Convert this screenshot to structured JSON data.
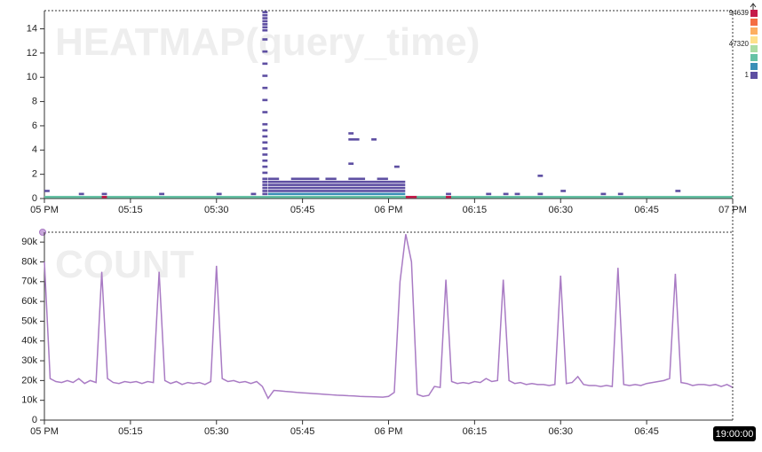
{
  "chart_data": [
    {
      "type": "heatmap",
      "title": "HEATMAP(query_time)",
      "xlim": [
        0,
        120
      ],
      "xticks": [
        {
          "value": 0,
          "label": "05 PM"
        },
        {
          "value": 15,
          "label": "05:15"
        },
        {
          "value": 30,
          "label": "05:30"
        },
        {
          "value": 45,
          "label": "05:45"
        },
        {
          "value": 60,
          "label": "06 PM"
        },
        {
          "value": 75,
          "label": "06:15"
        },
        {
          "value": 90,
          "label": "06:30"
        },
        {
          "value": 105,
          "label": "06:45"
        },
        {
          "value": 120,
          "label": "07 PM"
        }
      ],
      "ylim": [
        0,
        15.5
      ],
      "yticks": [
        0,
        2,
        4,
        6,
        8,
        10,
        12,
        14
      ],
      "bucket_size": 0.25,
      "palette": [
        "#c51b4a",
        "#f46d43",
        "#fdae61",
        "#fee08b",
        "#abdda4",
        "#66c2a5",
        "#3a8fb7",
        "#5e4fa2"
      ],
      "legend": [
        94639,
        47320,
        1
      ],
      "cells": [
        [
          0,
          120,
          0,
          5
        ],
        [
          39,
          63,
          0.25,
          6
        ],
        [
          39,
          63,
          0.5,
          7
        ],
        [
          39,
          63,
          0.75,
          7
        ],
        [
          39,
          63,
          1.0,
          7
        ],
        [
          39,
          63,
          1.25,
          7
        ],
        [
          39,
          41,
          1.5,
          7
        ],
        [
          43,
          48,
          1.5,
          7
        ],
        [
          49,
          51,
          1.5,
          7
        ],
        [
          53,
          56,
          1.5,
          7
        ],
        [
          58,
          60,
          1.5,
          7
        ],
        [
          53,
          54,
          2.75,
          7
        ],
        [
          61,
          62,
          2.5,
          7
        ],
        [
          53,
          54,
          5.25,
          7
        ],
        [
          53,
          55,
          4.75,
          7
        ],
        [
          57,
          58,
          4.75,
          7
        ],
        [
          38,
          39,
          0.25,
          7
        ],
        [
          38,
          39,
          0.5,
          7
        ],
        [
          38,
          39,
          0.75,
          7
        ],
        [
          38,
          39,
          1.0,
          7
        ],
        [
          38,
          39,
          1.25,
          7
        ],
        [
          38,
          39,
          1.5,
          7
        ],
        [
          38,
          39,
          2,
          7
        ],
        [
          38,
          39,
          2.5,
          7
        ],
        [
          38,
          39,
          3,
          7
        ],
        [
          38,
          39,
          3.5,
          7
        ],
        [
          38,
          39,
          4,
          7
        ],
        [
          38,
          39,
          4.5,
          7
        ],
        [
          38,
          39,
          5,
          7
        ],
        [
          38,
          39,
          5.5,
          7
        ],
        [
          38,
          39,
          6,
          7
        ],
        [
          38,
          39,
          7,
          7
        ],
        [
          38,
          39,
          8,
          7
        ],
        [
          38,
          39,
          9,
          7
        ],
        [
          38,
          39,
          10,
          7
        ],
        [
          38,
          39,
          11,
          7
        ],
        [
          38,
          39,
          12,
          7
        ],
        [
          38,
          39,
          13,
          7
        ],
        [
          38,
          39,
          13.75,
          7
        ],
        [
          38,
          39,
          14,
          7
        ],
        [
          38,
          39,
          14.25,
          7
        ],
        [
          38,
          39,
          14.5,
          7
        ],
        [
          38,
          39,
          14.75,
          7
        ],
        [
          38,
          39,
          15,
          7
        ],
        [
          38,
          39,
          15.25,
          7
        ],
        [
          0,
          1,
          0.5,
          7
        ],
        [
          6,
          7,
          0.25,
          7
        ],
        [
          10,
          11,
          0.25,
          7
        ],
        [
          10,
          11,
          0,
          0
        ],
        [
          20,
          21,
          0.25,
          7
        ],
        [
          30,
          31,
          0.25,
          7
        ],
        [
          36,
          37,
          0.25,
          7
        ],
        [
          70,
          71,
          0.25,
          7
        ],
        [
          70,
          71,
          0,
          0
        ],
        [
          77,
          78,
          0.25,
          7
        ],
        [
          80,
          81,
          0.25,
          7
        ],
        [
          82,
          83,
          0.25,
          7
        ],
        [
          86,
          87,
          0.25,
          7
        ],
        [
          86,
          87,
          1.75,
          7
        ],
        [
          90,
          91,
          0.5,
          7
        ],
        [
          97,
          98,
          0.25,
          7
        ],
        [
          100,
          101,
          0.25,
          7
        ],
        [
          110,
          111,
          0.5,
          7
        ],
        [
          63,
          65,
          0,
          0
        ]
      ]
    },
    {
      "type": "line",
      "title": "COUNT",
      "color": "#a97bc4",
      "xlim": [
        0,
        120
      ],
      "xticks": [
        {
          "value": 0,
          "label": "05 PM"
        },
        {
          "value": 15,
          "label": "05:15"
        },
        {
          "value": 30,
          "label": "05:30"
        },
        {
          "value": 45,
          "label": "05:45"
        },
        {
          "value": 60,
          "label": "06 PM"
        },
        {
          "value": 75,
          "label": "06:15"
        },
        {
          "value": 90,
          "label": "06:30"
        },
        {
          "value": 105,
          "label": "06:45"
        }
      ],
      "ylim": [
        0,
        95000
      ],
      "yticks": [
        0,
        {
          "value": 10000,
          "label": "10k"
        },
        {
          "value": 20000,
          "label": "20k"
        },
        {
          "value": 30000,
          "label": "30k"
        },
        {
          "value": 40000,
          "label": "40k"
        },
        {
          "value": 50000,
          "label": "50k"
        },
        {
          "value": 60000,
          "label": "60k"
        },
        {
          "value": 70000,
          "label": "70k"
        },
        {
          "value": 80000,
          "label": "80k"
        },
        {
          "value": 90000,
          "label": "90k"
        }
      ],
      "cursor": {
        "x": 120,
        "label": "19:00:00"
      },
      "values": [
        80000,
        21000,
        19500,
        19000,
        20000,
        19000,
        21000,
        18500,
        20000,
        19000,
        75000,
        21000,
        19000,
        18500,
        19500,
        19000,
        19500,
        18500,
        19500,
        19000,
        75000,
        20000,
        18500,
        19500,
        18000,
        19000,
        18500,
        19000,
        18000,
        19500,
        78000,
        21000,
        19500,
        20000,
        19000,
        19500,
        18500,
        19500,
        17000,
        11000,
        15000,
        14800,
        14500,
        14300,
        14000,
        13800,
        13600,
        13400,
        13200,
        13000,
        12800,
        12600,
        12500,
        12300,
        12200,
        12000,
        11900,
        11800,
        11700,
        11600,
        12000,
        14000,
        70000,
        94000,
        80000,
        13000,
        12000,
        12500,
        17000,
        16500,
        71000,
        19500,
        18500,
        19000,
        18500,
        19500,
        19000,
        21000,
        19500,
        20000,
        71000,
        20000,
        18500,
        19000,
        18000,
        18500,
        18000,
        18000,
        17500,
        18000,
        73000,
        18500,
        19000,
        22000,
        18000,
        17500,
        17500,
        17000,
        17500,
        17000,
        77000,
        18000,
        17500,
        18000,
        17500,
        18500,
        19000,
        19500,
        20000,
        21000,
        74000,
        19000,
        18500,
        17500,
        18000,
        18000,
        17500,
        18000,
        17000,
        18000,
        16500
      ]
    }
  ]
}
